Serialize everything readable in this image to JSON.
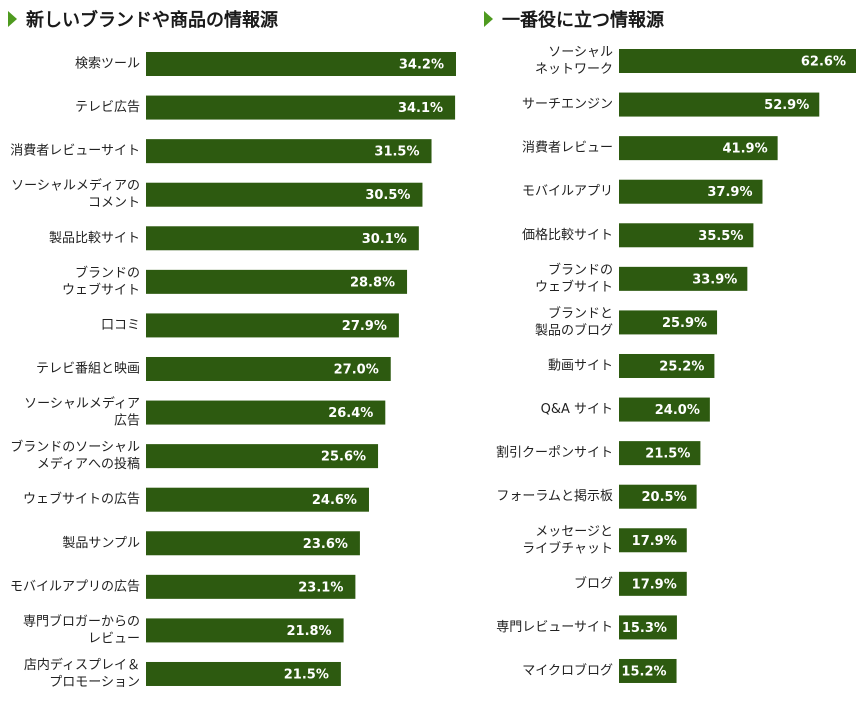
{
  "colors": {
    "bar": "#2d5a10",
    "accent": "#4e9a1f",
    "value_text": "#ffffff"
  },
  "chart_data": [
    {
      "type": "bar",
      "orientation": "horizontal",
      "title": "新しいブランドや商品の情報源",
      "categories": [
        [
          "検索ツール"
        ],
        [
          "テレビ広告"
        ],
        [
          "消費者レビューサイト"
        ],
        [
          "ソーシャルメディアの",
          "コメント"
        ],
        [
          "製品比較サイト"
        ],
        [
          "ブランドの",
          "ウェブサイト"
        ],
        [
          "口コミ"
        ],
        [
          "テレビ番組と映画"
        ],
        [
          "ソーシャルメディア",
          "広告"
        ],
        [
          "ブランドのソーシャル",
          "メディアへの投稿"
        ],
        [
          "ウェブサイトの広告"
        ],
        [
          "製品サンプル"
        ],
        [
          "モバイルアプリの広告"
        ],
        [
          "専門ブロガーからの",
          "レビュー"
        ],
        [
          "店内ディスプレイ＆",
          "プロモーション"
        ]
      ],
      "values": [
        34.2,
        34.1,
        31.5,
        30.5,
        30.1,
        28.8,
        27.9,
        27.0,
        26.4,
        25.6,
        24.6,
        23.6,
        23.1,
        21.8,
        21.5
      ],
      "value_labels": [
        "34.2%",
        "34.1%",
        "31.5%",
        "30.5%",
        "30.1%",
        "28.8%",
        "27.9%",
        "27.0%",
        "26.4%",
        "25.6%",
        "24.6%",
        "23.6%",
        "23.1%",
        "21.8%",
        "21.5%"
      ]
    },
    {
      "type": "bar",
      "orientation": "horizontal",
      "title": "一番役に立つ情報源",
      "categories": [
        [
          "ソーシャル",
          "ネットワーク"
        ],
        [
          "サーチエンジン"
        ],
        [
          "消費者レビュー"
        ],
        [
          "モバイルアプリ"
        ],
        [
          "価格比較サイト"
        ],
        [
          "ブランドの",
          "ウェブサイト"
        ],
        [
          "ブランドと",
          "製品のブログ"
        ],
        [
          "動画サイト"
        ],
        [
          "Q&A サイト"
        ],
        [
          "割引クーポンサイト"
        ],
        [
          "フォーラムと掲示板"
        ],
        [
          "メッセージと",
          "ライブチャット"
        ],
        [
          "ブログ"
        ],
        [
          "専門レビューサイト"
        ],
        [
          "マイクロブログ"
        ]
      ],
      "values": [
        62.6,
        52.9,
        41.9,
        37.9,
        35.5,
        33.9,
        25.9,
        25.2,
        24.0,
        21.5,
        20.5,
        17.9,
        17.9,
        15.3,
        15.2
      ],
      "value_labels": [
        "62.6%",
        "52.9%",
        "41.9%",
        "37.9%",
        "35.5%",
        "33.9%",
        "25.9%",
        "25.2%",
        "24.0%",
        "21.5%",
        "20.5%",
        "17.9%",
        "17.9%",
        "15.3%",
        "15.2%"
      ]
    }
  ]
}
